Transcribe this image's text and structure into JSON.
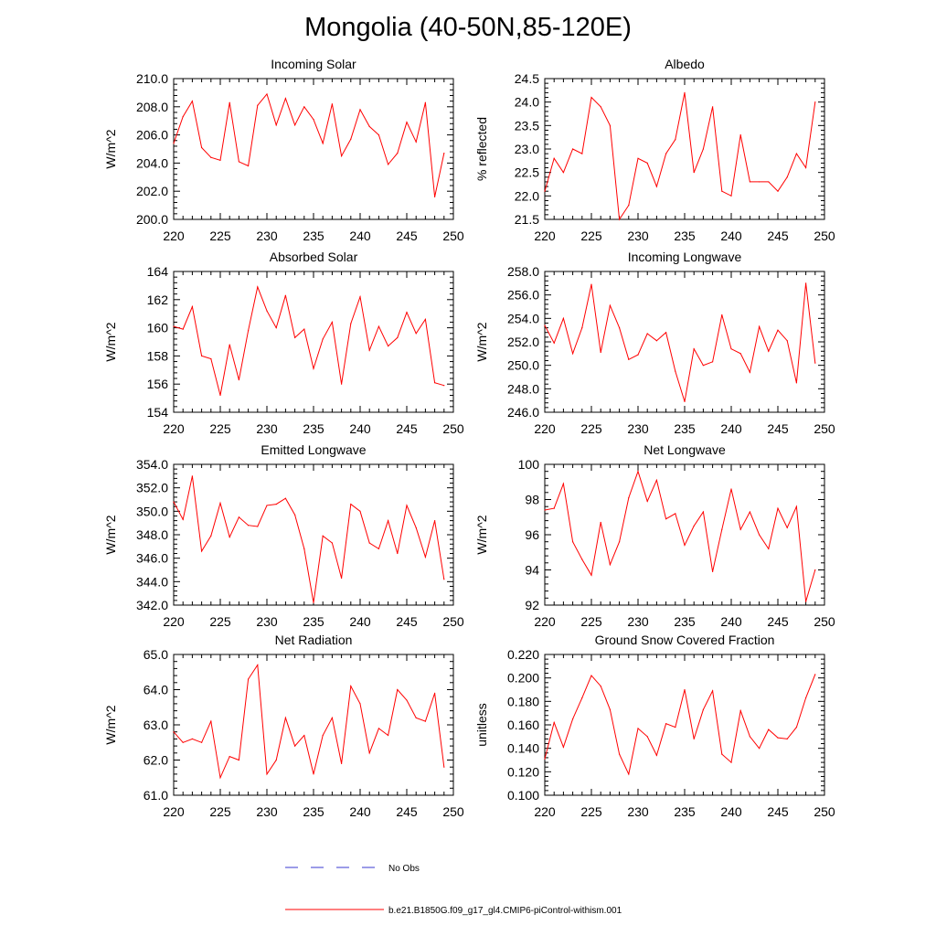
{
  "figure_title": "Mongolia (40-50N,85-120E)",
  "colors": {
    "model_line": "#ff0000",
    "obs_line": "#3a3ad0",
    "axis": "#000000"
  },
  "legend": [
    {
      "label": "No Obs",
      "style": "dashed",
      "color": "#3a3ad0"
    },
    {
      "label": "b.e21.B1850G.f09_g17_gl4.CMIP6-piControl-withism.001",
      "style": "solid",
      "color": "#ff0000"
    }
  ],
  "chart_data": [
    {
      "type": "line",
      "title": "Incoming Solar",
      "ylabel": "W/m^2",
      "xlim": [
        220,
        250
      ],
      "ylim": [
        200,
        210
      ],
      "xticks": [
        "220",
        "225",
        "230",
        "235",
        "240",
        "245",
        "250"
      ],
      "yticks": [
        "200.0",
        "202.0",
        "204.0",
        "206.0",
        "208.0",
        "210.0"
      ],
      "x": [
        220,
        221,
        222,
        223,
        224,
        225,
        226,
        227,
        228,
        229,
        230,
        231,
        232,
        233,
        234,
        235,
        236,
        237,
        238,
        239,
        240,
        241,
        242,
        243,
        244,
        245,
        246,
        247,
        248,
        249
      ],
      "series": [
        {
          "values": [
            205.4,
            207.3,
            208.4,
            205.1,
            204.4,
            204.2,
            208.3,
            204.1,
            203.8,
            208.1,
            208.9,
            206.7,
            208.6,
            206.7,
            208.0,
            207.1,
            205.4,
            208.2,
            204.5,
            205.7,
            207.8,
            206.6,
            206.0,
            203.9,
            204.7,
            206.9,
            205.5,
            208.3,
            201.6,
            204.7
          ]
        }
      ]
    },
    {
      "type": "line",
      "title": "Albedo",
      "ylabel": "% reflected",
      "xlim": [
        220,
        250
      ],
      "ylim": [
        21.5,
        24.5
      ],
      "xticks": [
        "220",
        "225",
        "230",
        "235",
        "240",
        "245",
        "250"
      ],
      "yticks": [
        "21.5",
        "22.0",
        "22.5",
        "23.0",
        "23.5",
        "24.0",
        "24.5"
      ],
      "x": [
        220,
        221,
        222,
        223,
        224,
        225,
        226,
        227,
        228,
        229,
        230,
        231,
        232,
        233,
        234,
        235,
        236,
        237,
        238,
        239,
        240,
        241,
        242,
        243,
        244,
        245,
        246,
        247,
        248,
        249
      ],
      "series": [
        {
          "values": [
            22.1,
            22.8,
            22.5,
            23.0,
            22.9,
            24.1,
            23.9,
            23.5,
            21.5,
            21.8,
            22.8,
            22.7,
            22.2,
            22.9,
            23.2,
            24.2,
            22.5,
            23.0,
            23.9,
            22.1,
            22.0,
            23.3,
            22.3,
            22.3,
            22.3,
            22.1,
            22.4,
            22.9,
            22.6,
            24.0
          ]
        }
      ]
    },
    {
      "type": "line",
      "title": "Absorbed Solar",
      "ylabel": "W/m^2",
      "xlim": [
        220,
        250
      ],
      "ylim": [
        154,
        164
      ],
      "xticks": [
        "220",
        "225",
        "230",
        "235",
        "240",
        "245",
        "250"
      ],
      "yticks": [
        "154",
        "156",
        "158",
        "160",
        "162",
        "164"
      ],
      "x": [
        220,
        221,
        222,
        223,
        224,
        225,
        226,
        227,
        228,
        229,
        230,
        231,
        232,
        233,
        234,
        235,
        236,
        237,
        238,
        239,
        240,
        241,
        242,
        243,
        244,
        245,
        246,
        247,
        248,
        249
      ],
      "series": [
        {
          "values": [
            160.1,
            159.9,
            161.5,
            158.0,
            157.8,
            155.2,
            158.8,
            156.3,
            159.8,
            162.9,
            161.2,
            160.0,
            162.3,
            159.3,
            159.9,
            157.1,
            159.2,
            160.4,
            156.0,
            160.3,
            162.2,
            158.4,
            160.1,
            158.7,
            159.3,
            161.1,
            159.6,
            160.6,
            156.1,
            155.9
          ]
        }
      ]
    },
    {
      "type": "line",
      "title": "Incoming Longwave",
      "ylabel": "W/m^2",
      "xlim": [
        220,
        250
      ],
      "ylim": [
        246,
        258
      ],
      "xticks": [
        "220",
        "225",
        "230",
        "235",
        "240",
        "245",
        "250"
      ],
      "yticks": [
        "246.0",
        "248.0",
        "250.0",
        "252.0",
        "254.0",
        "256.0",
        "258.0"
      ],
      "x": [
        220,
        221,
        222,
        223,
        224,
        225,
        226,
        227,
        228,
        229,
        230,
        231,
        232,
        233,
        234,
        235,
        236,
        237,
        238,
        239,
        240,
        241,
        242,
        243,
        244,
        245,
        246,
        247,
        248,
        249
      ],
      "series": [
        {
          "values": [
            253.4,
            251.9,
            254.0,
            251.0,
            253.2,
            256.9,
            251.1,
            255.1,
            253.2,
            250.5,
            250.9,
            252.7,
            252.1,
            252.8,
            249.5,
            246.9,
            251.4,
            250.0,
            250.3,
            254.3,
            251.4,
            251.0,
            249.4,
            253.3,
            251.2,
            253.0,
            252.1,
            248.5,
            257.0,
            250.2
          ]
        }
      ]
    },
    {
      "type": "line",
      "title": "Emitted Longwave",
      "ylabel": "W/m^2",
      "xlim": [
        220,
        250
      ],
      "ylim": [
        342,
        354
      ],
      "xticks": [
        "220",
        "225",
        "230",
        "235",
        "240",
        "245",
        "250"
      ],
      "yticks": [
        "342.0",
        "344.0",
        "346.0",
        "348.0",
        "350.0",
        "352.0",
        "354.0"
      ],
      "x": [
        220,
        221,
        222,
        223,
        224,
        225,
        226,
        227,
        228,
        229,
        230,
        231,
        232,
        233,
        234,
        235,
        236,
        237,
        238,
        239,
        240,
        241,
        242,
        243,
        244,
        245,
        246,
        247,
        248,
        249
      ],
      "series": [
        {
          "values": [
            350.8,
            349.3,
            353.0,
            346.6,
            347.9,
            350.7,
            347.8,
            349.5,
            348.8,
            348.7,
            350.5,
            350.6,
            351.1,
            349.7,
            346.8,
            342.2,
            347.9,
            347.3,
            344.3,
            350.6,
            350.0,
            347.3,
            346.8,
            349.2,
            346.4,
            350.5,
            348.6,
            346.1,
            349.2,
            344.2
          ]
        }
      ]
    },
    {
      "type": "line",
      "title": "Net Longwave",
      "ylabel": "W/m^2",
      "xlim": [
        220,
        250
      ],
      "ylim": [
        92,
        100
      ],
      "xticks": [
        "220",
        "225",
        "230",
        "235",
        "240",
        "245",
        "250"
      ],
      "yticks": [
        "92",
        "94",
        "96",
        "98",
        "100"
      ],
      "x": [
        220,
        221,
        222,
        223,
        224,
        225,
        226,
        227,
        228,
        229,
        230,
        231,
        232,
        233,
        234,
        235,
        236,
        237,
        238,
        239,
        240,
        241,
        242,
        243,
        244,
        245,
        246,
        247,
        248,
        249
      ],
      "series": [
        {
          "values": [
            97.4,
            97.5,
            98.9,
            95.6,
            94.6,
            93.7,
            96.7,
            94.3,
            95.6,
            98.1,
            99.6,
            97.9,
            99.1,
            96.9,
            97.2,
            95.4,
            96.5,
            97.3,
            93.9,
            96.3,
            98.6,
            96.3,
            97.3,
            96.0,
            95.2,
            97.5,
            96.4,
            97.6,
            92.2,
            94.0
          ]
        }
      ]
    },
    {
      "type": "line",
      "title": "Net Radiation",
      "ylabel": "W/m^2",
      "xlim": [
        220,
        250
      ],
      "ylim": [
        61,
        65
      ],
      "xticks": [
        "220",
        "225",
        "230",
        "235",
        "240",
        "245",
        "250"
      ],
      "yticks": [
        "61.0",
        "62.0",
        "63.0",
        "64.0",
        "65.0"
      ],
      "x": [
        220,
        221,
        222,
        223,
        224,
        225,
        226,
        227,
        228,
        229,
        230,
        231,
        232,
        233,
        234,
        235,
        236,
        237,
        238,
        239,
        240,
        241,
        242,
        243,
        244,
        245,
        246,
        247,
        248,
        249
      ],
      "series": [
        {
          "values": [
            62.8,
            62.5,
            62.6,
            62.5,
            63.1,
            61.5,
            62.1,
            62.0,
            64.3,
            64.7,
            61.6,
            62.0,
            63.2,
            62.4,
            62.7,
            61.6,
            62.7,
            63.2,
            61.9,
            64.1,
            63.6,
            62.2,
            62.9,
            62.7,
            64.0,
            63.7,
            63.2,
            63.1,
            63.9,
            61.8
          ]
        }
      ]
    },
    {
      "type": "line",
      "title": "Ground Snow Covered Fraction",
      "ylabel": "unitless",
      "xlim": [
        220,
        250
      ],
      "ylim": [
        0.1,
        0.22
      ],
      "xticks": [
        "220",
        "225",
        "230",
        "235",
        "240",
        "245",
        "250"
      ],
      "yticks": [
        "0.100",
        "0.120",
        "0.140",
        "0.160",
        "0.180",
        "0.200",
        "0.220"
      ],
      "x": [
        220,
        221,
        222,
        223,
        224,
        225,
        226,
        227,
        228,
        229,
        230,
        231,
        232,
        233,
        234,
        235,
        236,
        237,
        238,
        239,
        240,
        241,
        242,
        243,
        244,
        245,
        246,
        247,
        248,
        249
      ],
      "series": [
        {
          "values": [
            0.131,
            0.162,
            0.141,
            0.165,
            0.183,
            0.202,
            0.193,
            0.173,
            0.135,
            0.118,
            0.157,
            0.15,
            0.134,
            0.161,
            0.158,
            0.19,
            0.148,
            0.173,
            0.189,
            0.135,
            0.128,
            0.172,
            0.15,
            0.14,
            0.156,
            0.149,
            0.148,
            0.158,
            0.183,
            0.203
          ]
        }
      ]
    }
  ]
}
